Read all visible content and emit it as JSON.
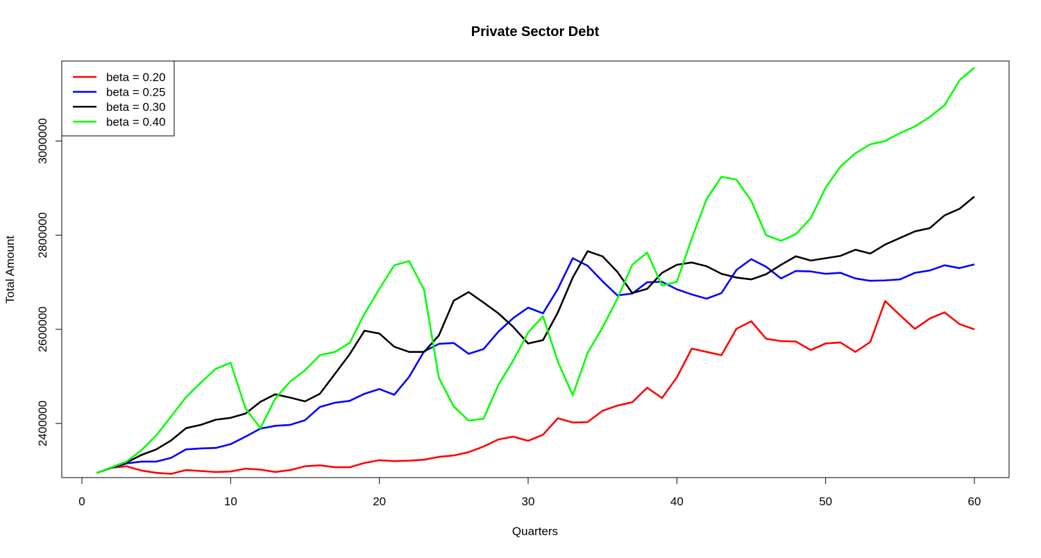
{
  "chart_data": {
    "type": "line",
    "title": "Private Sector Debt",
    "xlabel": "Quarters",
    "ylabel": "Total Amount",
    "xlim": [
      1,
      60
    ],
    "ylim": [
      2285000,
      3170000
    ],
    "x_ticks": [
      0,
      10,
      20,
      30,
      40,
      50,
      60
    ],
    "y_ticks": [
      2400000,
      2600000,
      2800000,
      3000000
    ],
    "grid": false,
    "legend_position": "top-left",
    "x": [
      1,
      2,
      3,
      4,
      5,
      6,
      7,
      8,
      9,
      10,
      11,
      12,
      13,
      14,
      15,
      16,
      17,
      18,
      19,
      20,
      21,
      22,
      23,
      24,
      25,
      26,
      27,
      28,
      29,
      30,
      31,
      32,
      33,
      34,
      35,
      36,
      37,
      38,
      39,
      40,
      41,
      42,
      43,
      44,
      45,
      46,
      47,
      48,
      49,
      50,
      51,
      52,
      53,
      54,
      55,
      56,
      57,
      58,
      59,
      60
    ],
    "series": [
      {
        "name": "beta = 0.20",
        "color": "#ff0000",
        "values": [
          2295000,
          2306000,
          2309000,
          2300000,
          2295000,
          2293000,
          2301000,
          2299000,
          2297000,
          2298000,
          2304000,
          2302000,
          2297000,
          2301000,
          2309000,
          2311000,
          2307000,
          2307000,
          2316000,
          2322000,
          2320000,
          2321000,
          2323000,
          2329000,
          2332000,
          2339000,
          2351000,
          2366000,
          2372000,
          2363000,
          2376000,
          2411000,
          2402000,
          2403000,
          2427000,
          2438000,
          2445000,
          2476000,
          2454000,
          2498000,
          2559000,
          2552000,
          2545000,
          2601000,
          2617000,
          2580000,
          2575000,
          2574000,
          2556000,
          2570000,
          2572000,
          2552000,
          2573000,
          2660000,
          2630000,
          2601000,
          2623000,
          2636000,
          2611000,
          2600000
        ]
      },
      {
        "name": "beta = 0.25",
        "color": "#0000ff",
        "values": [
          2295000,
          2306000,
          2315000,
          2319000,
          2319000,
          2327000,
          2345000,
          2347000,
          2348000,
          2356000,
          2372000,
          2389000,
          2395000,
          2397000,
          2407000,
          2435000,
          2444000,
          2448000,
          2463000,
          2473000,
          2461000,
          2499000,
          2553000,
          2569000,
          2571000,
          2548000,
          2558000,
          2595000,
          2624000,
          2646000,
          2634000,
          2686000,
          2751000,
          2735000,
          2702000,
          2672000,
          2676000,
          2700000,
          2701000,
          2685000,
          2674000,
          2665000,
          2677000,
          2726000,
          2749000,
          2733000,
          2708000,
          2724000,
          2723000,
          2718000,
          2720000,
          2708000,
          2703000,
          2704000,
          2706000,
          2720000,
          2725000,
          2736000,
          2730000,
          2738000
        ]
      },
      {
        "name": "beta = 0.30",
        "color": "#000000",
        "values": [
          2295000,
          2306000,
          2317000,
          2333000,
          2345000,
          2364000,
          2390000,
          2397000,
          2408000,
          2412000,
          2421000,
          2446000,
          2462000,
          2455000,
          2447000,
          2463000,
          2505000,
          2547000,
          2597000,
          2591000,
          2563000,
          2552000,
          2552000,
          2587000,
          2661000,
          2679000,
          2657000,
          2634000,
          2605000,
          2570000,
          2577000,
          2636000,
          2710000,
          2766000,
          2755000,
          2722000,
          2677000,
          2686000,
          2720000,
          2737000,
          2742000,
          2734000,
          2718000,
          2710000,
          2706000,
          2717000,
          2737000,
          2755000,
          2746000,
          2751000,
          2756000,
          2769000,
          2761000,
          2780000,
          2794000,
          2808000,
          2815000,
          2842000,
          2856000,
          2882000
        ]
      },
      {
        "name": "beta = 0.40",
        "color": "#00ff00",
        "values": [
          2295000,
          2307000,
          2319000,
          2343000,
          2375000,
          2415000,
          2456000,
          2487000,
          2516000,
          2529000,
          2432000,
          2390000,
          2453000,
          2489000,
          2513000,
          2545000,
          2552000,
          2571000,
          2633000,
          2686000,
          2736000,
          2745000,
          2684000,
          2497000,
          2436000,
          2406000,
          2410000,
          2482000,
          2534000,
          2593000,
          2628000,
          2531000,
          2460000,
          2550000,
          2604000,
          2665000,
          2737000,
          2763000,
          2693000,
          2701000,
          2793000,
          2877000,
          2924000,
          2918000,
          2873000,
          2800000,
          2788000,
          2802000,
          2836000,
          2901000,
          2946000,
          2974000,
          2993000,
          3000000,
          3017000,
          3031000,
          3051000,
          3076000,
          3129000,
          3156000
        ]
      }
    ]
  }
}
